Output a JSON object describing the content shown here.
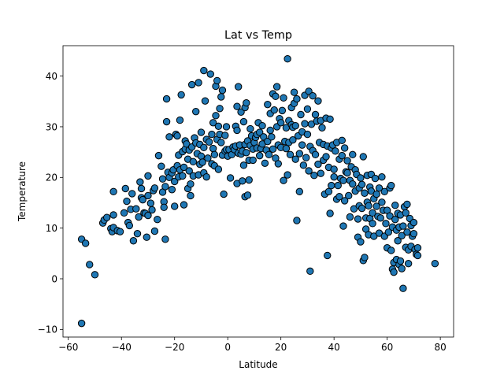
{
  "chart_data": {
    "type": "scatter",
    "title": "Lat vs Temp",
    "xlabel": "Latitude",
    "ylabel": "Temperature",
    "xlim": [
      -62,
      85
    ],
    "ylim": [
      -11.5,
      46
    ],
    "xticks": [
      -60,
      -40,
      -20,
      0,
      20,
      40,
      60,
      80
    ],
    "yticks": [
      -10,
      0,
      10,
      20,
      30,
      40
    ],
    "grid": false,
    "legend": "none",
    "marker_color": "#1f77b4",
    "marker_edge": "#000000",
    "points": [
      [
        -55,
        -8.8
      ],
      [
        -55,
        7.8
      ],
      [
        -53.5,
        7
      ],
      [
        -52,
        2.8
      ],
      [
        -50,
        0.8
      ],
      [
        -47,
        11
      ],
      [
        -46.5,
        11.6
      ],
      [
        -45.5,
        12.1
      ],
      [
        -44,
        9.9
      ],
      [
        -43.5,
        9.3
      ],
      [
        -43,
        10.1
      ],
      [
        -43,
        12.6
      ],
      [
        -43,
        17.2
      ],
      [
        -41.5,
        9.5
      ],
      [
        -40.5,
        9.3
      ],
      [
        -39,
        13
      ],
      [
        -38.5,
        17.8
      ],
      [
        -38,
        15.3
      ],
      [
        -37.5,
        11.1
      ],
      [
        -37,
        10.5
      ],
      [
        -36.5,
        13.7
      ],
      [
        -36,
        16.8
      ],
      [
        -35.5,
        7.5
      ],
      [
        -34.5,
        13.8
      ],
      [
        -34,
        8.9
      ],
      [
        -33.5,
        12.2
      ],
      [
        -33,
        19.1
      ],
      [
        -32.5,
        17.8
      ],
      [
        -32.5,
        16
      ],
      [
        -32,
        15.6
      ],
      [
        -31.5,
        13
      ],
      [
        -31,
        12.9
      ],
      [
        -30.5,
        8.2
      ],
      [
        -30,
        12.5
      ],
      [
        -30,
        16.4
      ],
      [
        -30,
        20.3
      ],
      [
        -29,
        14.9
      ],
      [
        -28.5,
        13.6
      ],
      [
        -28,
        17.4
      ],
      [
        -27.5,
        9.4
      ],
      [
        -27.5,
        17.9
      ],
      [
        -26.5,
        11.7
      ],
      [
        -26,
        24.3
      ],
      [
        -25,
        22.2
      ],
      [
        -24.5,
        19.7
      ],
      [
        -24.5,
        17.1
      ],
      [
        -24,
        15.2
      ],
      [
        -24,
        14.1
      ],
      [
        -23.5,
        7.8
      ],
      [
        -23.5,
        18.2
      ],
      [
        -23,
        31
      ],
      [
        -23,
        35.5
      ],
      [
        -22.5,
        21
      ],
      [
        -22,
        20
      ],
      [
        -22,
        28
      ],
      [
        -21,
        20.9
      ],
      [
        -21,
        17.6
      ],
      [
        -20.5,
        21.5
      ],
      [
        -20,
        14.3
      ],
      [
        -20,
        19.2
      ],
      [
        -19.5,
        28.5
      ],
      [
        -19,
        22.3
      ],
      [
        -19,
        28.2
      ],
      [
        -18.5,
        20.1
      ],
      [
        -18.5,
        24.4
      ],
      [
        -18,
        31.3
      ],
      [
        -18,
        21.5
      ],
      [
        -17.5,
        36.3
      ],
      [
        -17,
        20.3
      ],
      [
        -17,
        25.1
      ],
      [
        -16.5,
        14.6
      ],
      [
        -16.5,
        22
      ],
      [
        -16,
        25.6
      ],
      [
        -16,
        27.2
      ],
      [
        -15.5,
        26.6
      ],
      [
        -15,
        23.6
      ],
      [
        -15,
        17.8
      ],
      [
        -14.5,
        21.3
      ],
      [
        -14.5,
        25.4
      ],
      [
        -14,
        18.7
      ],
      [
        -14,
        16.4
      ],
      [
        -13.5,
        26
      ],
      [
        -13.5,
        38.3
      ],
      [
        -13,
        20.3
      ],
      [
        -13,
        23.1
      ],
      [
        -12.5,
        27.8
      ],
      [
        -12,
        33
      ],
      [
        -12,
        26.8
      ],
      [
        -11.5,
        24.7
      ],
      [
        -11,
        38.7
      ],
      [
        -11,
        20.5
      ],
      [
        -10.5,
        22.6
      ],
      [
        -10.5,
        26.5
      ],
      [
        -10,
        24.2
      ],
      [
        -10,
        28.9
      ],
      [
        -9.5,
        23
      ],
      [
        -9,
        20.9
      ],
      [
        -9,
        25.9
      ],
      [
        -9,
        41.1
      ],
      [
        -8.5,
        35.1
      ],
      [
        -8,
        27.5
      ],
      [
        -8,
        20.1
      ],
      [
        -7.5,
        23.8
      ],
      [
        -7,
        27
      ],
      [
        -6.5,
        40.4
      ],
      [
        -6,
        28.5
      ],
      [
        -6,
        22.7
      ],
      [
        -5.5,
        30.8
      ],
      [
        -5.5,
        25.7
      ],
      [
        -5,
        24.5
      ],
      [
        -5,
        22.3
      ],
      [
        -4.5,
        32.2
      ],
      [
        -4.5,
        38
      ],
      [
        -4,
        27.5
      ],
      [
        -4,
        39.1
      ],
      [
        -3.5,
        21.6
      ],
      [
        -3.5,
        30.1
      ],
      [
        -3,
        33.6
      ],
      [
        -3,
        28.5
      ],
      [
        -2.5,
        26.9
      ],
      [
        -2.5,
        35.9
      ],
      [
        -2,
        24.4
      ],
      [
        -2,
        37.2
      ],
      [
        -1.5,
        16.7
      ],
      [
        -1,
        28.3
      ],
      [
        -1,
        25.2
      ],
      [
        -0.5,
        25.5
      ],
      [
        -0.5,
        30
      ],
      [
        0,
        24.2
      ],
      [
        0.5,
        25.5
      ],
      [
        1,
        19.9
      ],
      [
        1.5,
        24.5
      ],
      [
        2,
        26
      ],
      [
        2.5,
        25.5
      ],
      [
        3,
        30.1
      ],
      [
        3,
        26.2
      ],
      [
        3.5,
        18.8
      ],
      [
        3.5,
        29.3
      ],
      [
        3.5,
        34
      ],
      [
        4,
        37.9
      ],
      [
        4,
        24.8
      ],
      [
        4.5,
        26.4
      ],
      [
        5,
        32.9
      ],
      [
        5,
        24.6
      ],
      [
        5.5,
        19.3
      ],
      [
        5.5,
        25.2
      ],
      [
        6,
        31
      ],
      [
        6,
        22.4
      ],
      [
        6.5,
        26.5
      ],
      [
        6.5,
        16.2
      ],
      [
        6.5,
        33.8
      ],
      [
        7,
        34.7
      ],
      [
        7,
        24.9
      ],
      [
        7.5,
        16.5
      ],
      [
        7.5,
        27.2
      ],
      [
        8,
        19.5
      ],
      [
        8,
        23.4
      ],
      [
        8.5,
        26.3
      ],
      [
        8.5,
        29.6
      ],
      [
        9,
        28.2
      ],
      [
        9.5,
        25.6
      ],
      [
        9.5,
        23.4
      ],
      [
        10,
        26.9
      ],
      [
        10.5,
        27.9
      ],
      [
        11,
        28.5
      ],
      [
        11,
        25.8
      ],
      [
        11.5,
        30.8
      ],
      [
        12,
        28.9
      ],
      [
        12,
        24.3
      ],
      [
        12.5,
        25.7
      ],
      [
        13,
        30.2
      ],
      [
        13,
        26.6
      ],
      [
        13.5,
        28
      ],
      [
        14,
        22.8
      ],
      [
        14.5,
        25.4
      ],
      [
        15,
        34.4
      ],
      [
        15,
        27.1
      ],
      [
        15.5,
        24.5
      ],
      [
        16,
        32.6
      ],
      [
        16,
        29.3
      ],
      [
        16.5,
        28
      ],
      [
        17,
        36.5
      ],
      [
        17,
        25.6
      ],
      [
        17.5,
        33.3
      ],
      [
        18,
        36
      ],
      [
        18,
        23.8
      ],
      [
        18.5,
        37.9
      ],
      [
        18.5,
        30
      ],
      [
        19,
        26.4
      ],
      [
        19,
        22.7
      ],
      [
        19.5,
        31.6
      ],
      [
        20,
        30.8
      ],
      [
        20,
        25.9
      ],
      [
        20.5,
        33.2
      ],
      [
        21,
        35.7
      ],
      [
        21,
        19.4
      ],
      [
        21.5,
        27.1
      ],
      [
        22,
        29.8
      ],
      [
        22,
        25.7
      ],
      [
        22.5,
        43.4
      ],
      [
        22.5,
        20.5
      ],
      [
        23,
        31.2
      ],
      [
        23,
        26.9
      ],
      [
        23.5,
        24.5
      ],
      [
        24,
        30.4
      ],
      [
        24,
        33.8
      ],
      [
        24.5,
        29.9
      ],
      [
        24.5,
        27.4
      ],
      [
        25,
        34.6
      ],
      [
        25,
        36.8
      ],
      [
        25.5,
        30.2
      ],
      [
        25.5,
        23.6
      ],
      [
        26,
        11.5
      ],
      [
        26,
        35.5
      ],
      [
        26.5,
        28.2
      ],
      [
        27,
        17.2
      ],
      [
        27,
        24.7
      ],
      [
        27.5,
        32.4
      ],
      [
        28,
        26.4
      ],
      [
        28,
        29
      ],
      [
        28.5,
        22.4
      ],
      [
        29,
        36.2
      ],
      [
        29,
        30.6
      ],
      [
        29.5,
        23.9
      ],
      [
        30,
        33.5
      ],
      [
        30,
        28.5
      ],
      [
        30.5,
        37
      ],
      [
        30.5,
        21.3
      ],
      [
        31,
        1.5
      ],
      [
        31,
        26.1
      ],
      [
        31.5,
        30.5
      ],
      [
        32,
        36.1
      ],
      [
        32,
        25.3
      ],
      [
        32.5,
        20.4
      ],
      [
        33,
        32.4
      ],
      [
        33,
        24.5
      ],
      [
        33.5,
        31.1
      ],
      [
        34,
        35.1
      ],
      [
        34,
        22.6
      ],
      [
        34.5,
        26.9
      ],
      [
        35,
        31.2
      ],
      [
        35,
        20.8
      ],
      [
        35.5,
        29.8
      ],
      [
        36,
        23.4
      ],
      [
        36,
        26.5
      ],
      [
        36.5,
        16.7
      ],
      [
        37,
        31.7
      ],
      [
        37,
        24.1
      ],
      [
        37.5,
        4.6
      ],
      [
        37.5,
        26.2
      ],
      [
        38,
        17.2
      ],
      [
        38,
        22
      ],
      [
        38.5,
        12.9
      ],
      [
        38.5,
        31.5
      ],
      [
        39,
        25.8
      ],
      [
        39,
        18.4
      ],
      [
        39.5,
        26.4
      ],
      [
        40,
        21.6
      ],
      [
        40,
        20.1
      ],
      [
        40.5,
        25.2
      ],
      [
        41,
        15.7
      ],
      [
        41,
        26.9
      ],
      [
        41.5,
        18.4
      ],
      [
        42,
        23.6
      ],
      [
        42,
        16.2
      ],
      [
        42.5,
        19.8
      ],
      [
        43,
        24.3
      ],
      [
        43,
        27.3
      ],
      [
        43.5,
        19.4
      ],
      [
        43.5,
        10.4
      ],
      [
        44,
        25.8
      ],
      [
        44,
        15.4
      ],
      [
        44.5,
        21.1
      ],
      [
        45,
        20.9
      ],
      [
        45,
        23.3
      ],
      [
        45.5,
        16.4
      ],
      [
        46,
        12.2
      ],
      [
        46,
        19.4
      ],
      [
        46.5,
        22.1
      ],
      [
        47,
        18.7
      ],
      [
        47,
        24.5
      ],
      [
        47.5,
        13.8
      ],
      [
        48,
        17.3
      ],
      [
        48,
        21.5
      ],
      [
        48.5,
        20.6
      ],
      [
        49,
        11.8
      ],
      [
        49,
        8.2
      ],
      [
        49.5,
        14.4
      ],
      [
        49.5,
        17.9
      ],
      [
        50,
        19.9
      ],
      [
        50,
        7.3
      ],
      [
        50.5,
        13.9
      ],
      [
        50.5,
        18.6
      ],
      [
        51,
        3.6
      ],
      [
        51,
        24.1
      ],
      [
        51.5,
        4.2
      ],
      [
        51.5,
        16.9
      ],
      [
        52,
        12
      ],
      [
        52,
        9.8
      ],
      [
        52.5,
        20.4
      ],
      [
        52.5,
        15.1
      ],
      [
        53,
        14.4
      ],
      [
        53,
        8.7
      ],
      [
        53.5,
        11.9
      ],
      [
        53.5,
        18.1
      ],
      [
        54,
        17.3
      ],
      [
        54,
        20.6
      ],
      [
        54.5,
        13
      ],
      [
        54.5,
        10.9
      ],
      [
        55,
        15.8
      ],
      [
        55,
        8.4
      ],
      [
        55.5,
        19.8
      ],
      [
        56,
        14.3
      ],
      [
        56,
        16.7
      ],
      [
        56.5,
        12.3
      ],
      [
        57,
        17.9
      ],
      [
        57,
        9
      ],
      [
        57.5,
        12
      ],
      [
        58,
        15.1
      ],
      [
        58,
        20.1
      ],
      [
        58.5,
        13.5
      ],
      [
        59,
        8.4
      ],
      [
        59,
        17.2
      ],
      [
        59.5,
        10.9
      ],
      [
        60,
        13.5
      ],
      [
        60,
        6.1
      ],
      [
        60.5,
        9.2
      ],
      [
        61,
        17.9
      ],
      [
        61,
        12.4
      ],
      [
        61.5,
        18.4
      ],
      [
        61.5,
        5.6
      ],
      [
        62,
        10.2
      ],
      [
        62,
        1.9
      ],
      [
        62.5,
        1.3
      ],
      [
        62.5,
        3.2
      ],
      [
        63,
        14.5
      ],
      [
        63,
        11.7
      ],
      [
        63.5,
        3.8
      ],
      [
        63.5,
        9.6
      ],
      [
        64,
        7.5
      ],
      [
        64,
        12.9
      ],
      [
        64.5,
        2.8
      ],
      [
        64.5,
        10.2
      ],
      [
        65,
        3.5
      ],
      [
        65,
        12.6
      ],
      [
        65.5,
        8.5
      ],
      [
        65.5,
        2
      ],
      [
        66,
        -1.9
      ],
      [
        66,
        10.4
      ],
      [
        66.5,
        14.2
      ],
      [
        67,
        6.2
      ],
      [
        67,
        13
      ],
      [
        67.5,
        9.2
      ],
      [
        67.5,
        14.7
      ],
      [
        68,
        5.7
      ],
      [
        68,
        3
      ],
      [
        68.5,
        11.9
      ],
      [
        69,
        6.4
      ],
      [
        69,
        10.5
      ],
      [
        69.5,
        8.4
      ],
      [
        70,
        11.1
      ],
      [
        70,
        8.9
      ],
      [
        70.5,
        5.8
      ],
      [
        71,
        4.8
      ],
      [
        71.5,
        6.1
      ],
      [
        71.5,
        4.6
      ],
      [
        78,
        3
      ]
    ]
  }
}
